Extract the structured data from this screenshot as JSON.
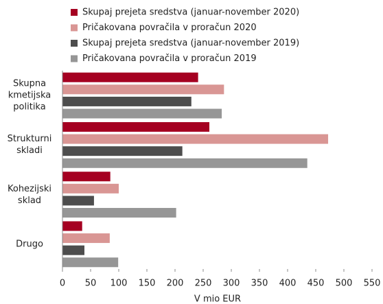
{
  "chart_data": {
    "type": "barh",
    "categories": [
      "Skupna kmetijska politika",
      "Strukturni skladi",
      "Kohezijski sklad",
      "Drugo"
    ],
    "series": [
      {
        "name": "Skupaj prejeta sredstva (januar-november 2020)",
        "color": "#a50021",
        "values": [
          241,
          261,
          85,
          35
        ]
      },
      {
        "name": "Pričakovana povračila v proračun 2020",
        "color": "#d99694",
        "values": [
          287,
          472,
          100,
          84
        ]
      },
      {
        "name": "Skupaj prejeta sredstva (januar-november 2019)",
        "color": "#4d4d4d",
        "values": [
          229,
          213,
          56,
          39
        ]
      },
      {
        "name": "Pričakovana povračila v proračun 2019",
        "color": "#969696",
        "values": [
          283,
          435,
          202,
          99
        ]
      }
    ],
    "xlabel": "V mio EUR",
    "xlim": [
      0,
      550
    ],
    "xticks": [
      0,
      50,
      100,
      150,
      200,
      250,
      300,
      350,
      400,
      450,
      500,
      550
    ],
    "legend": "top"
  }
}
